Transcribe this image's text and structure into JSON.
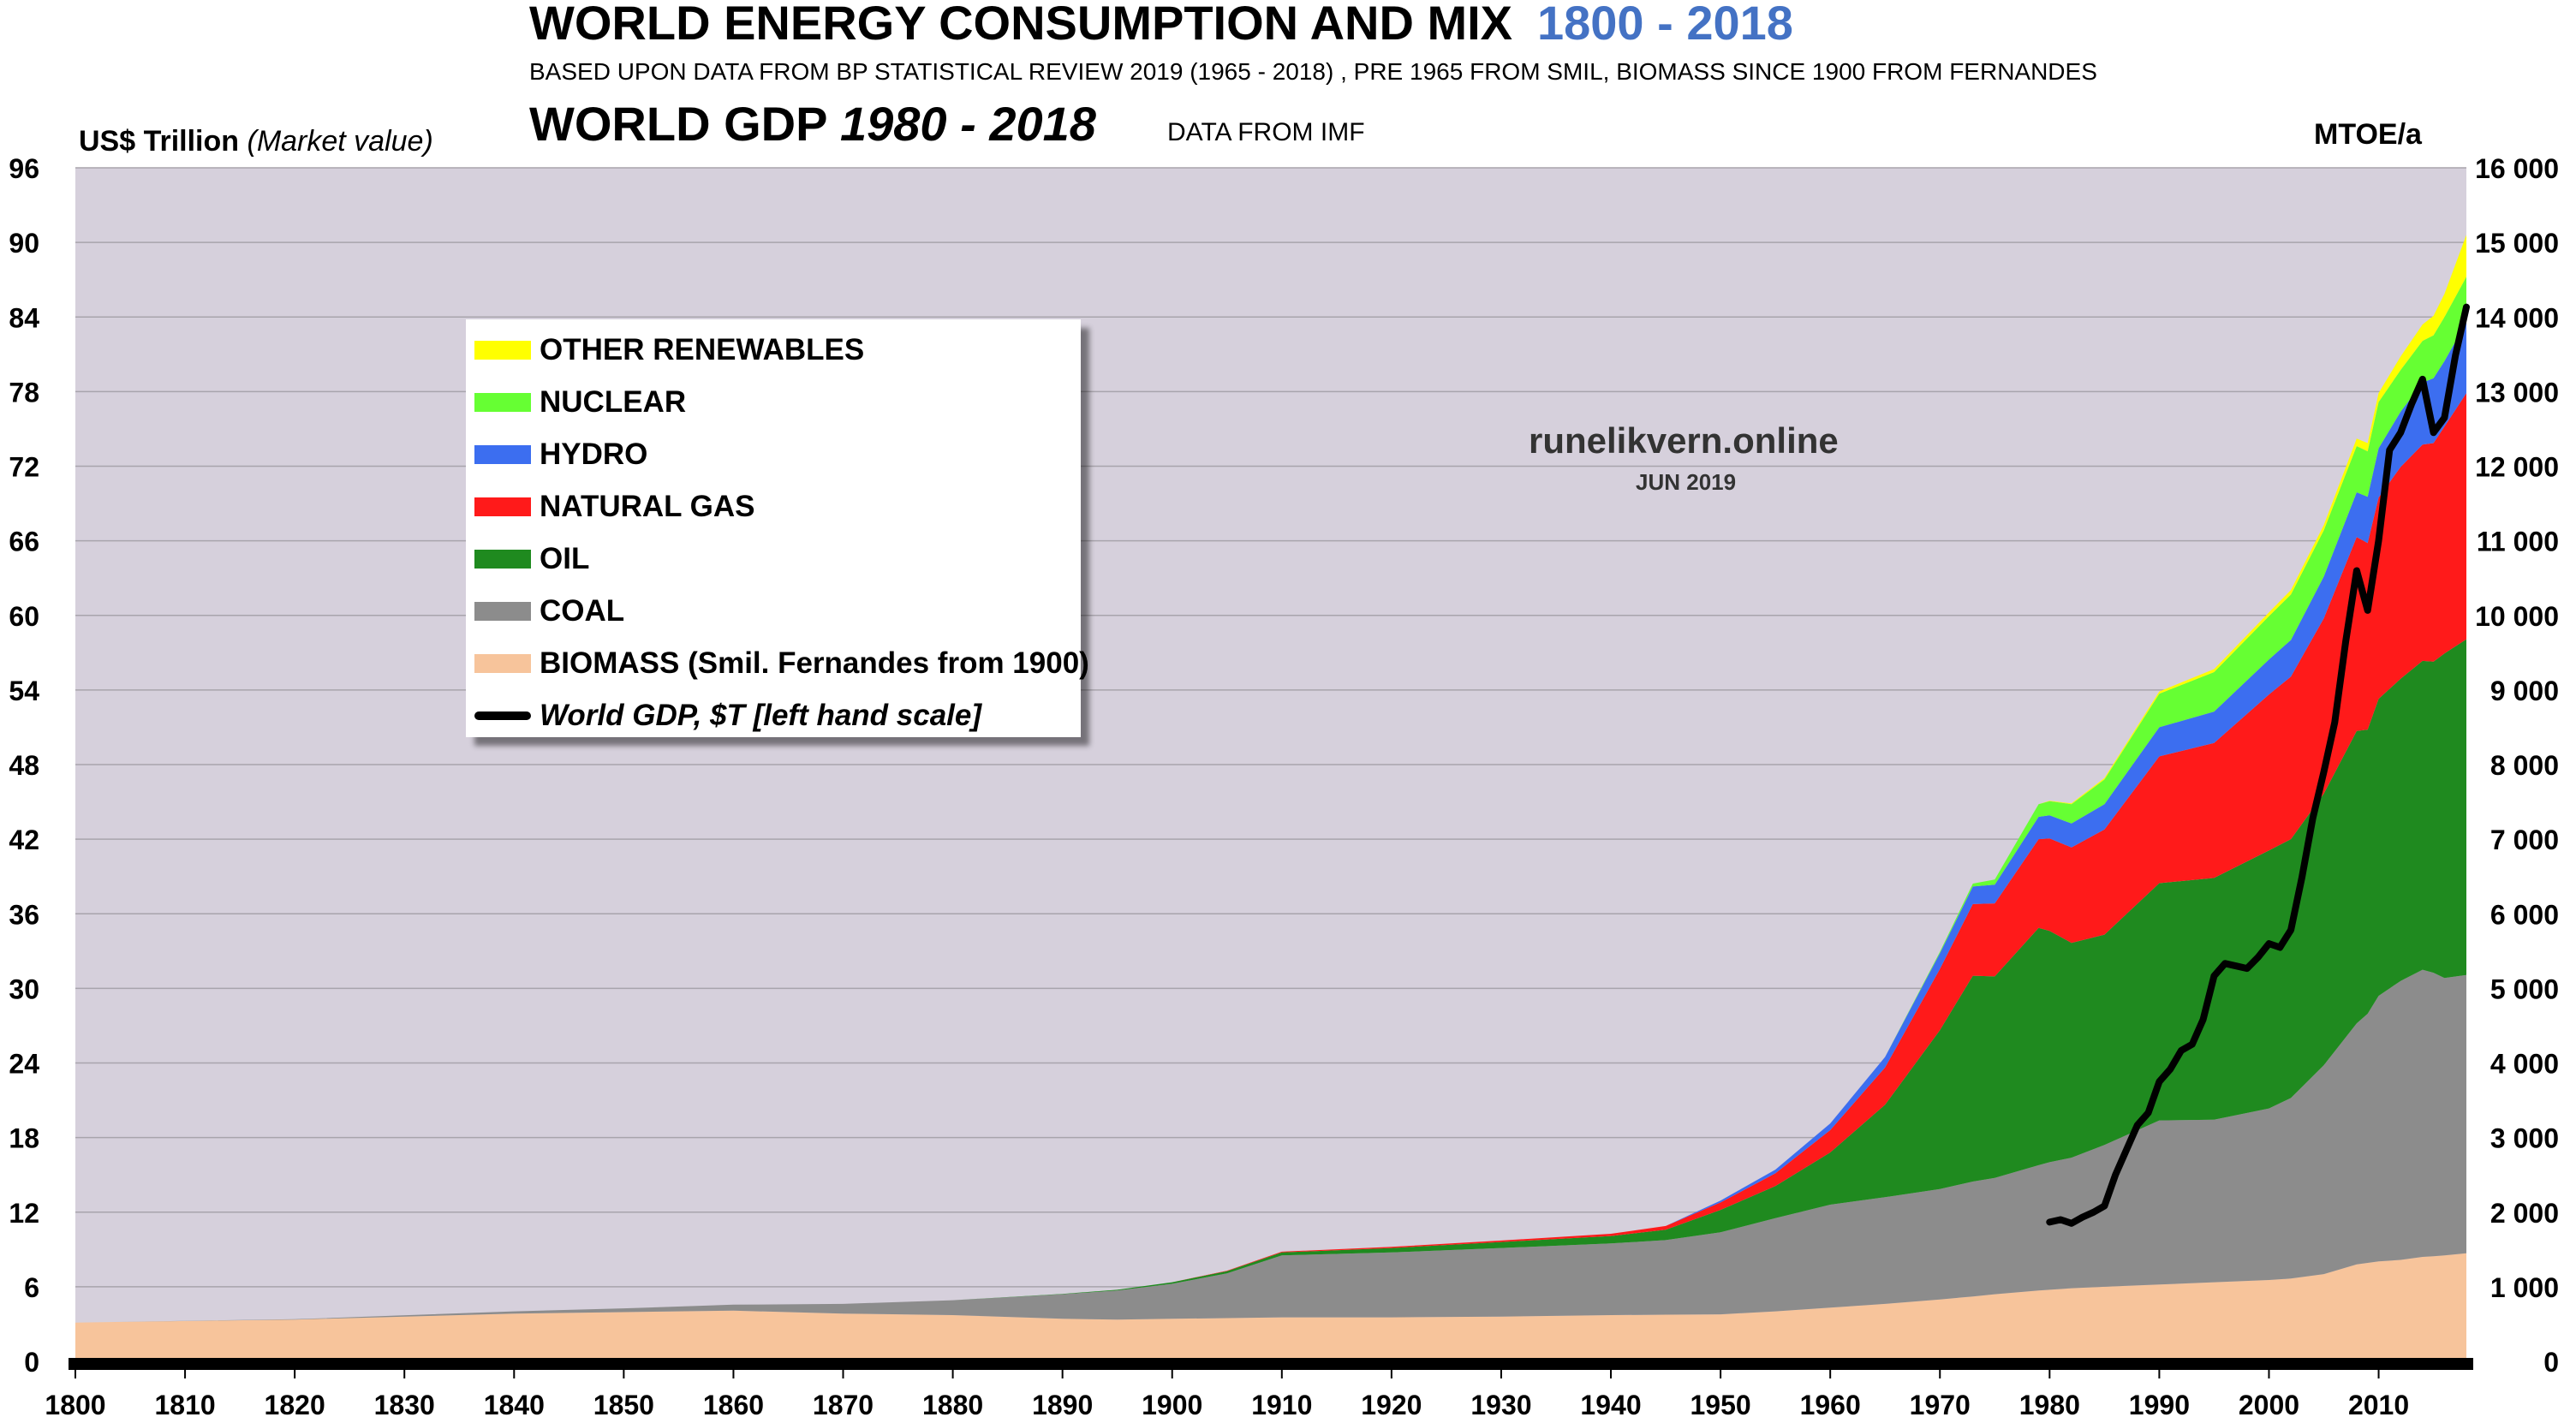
{
  "header": {
    "title": "WORLD ENERGY CONSUMPTION AND MIX",
    "years": "1800 - 2018",
    "subtitle": "BASED UPON DATA FROM BP STATISTICAL REVIEW 2019 (1965 - 2018) , PRE 1965 FROM SMIL,  BIOMASS SINCE 1900 FROM FERNANDES",
    "gdp_title": "WORLD GDP",
    "gdp_years": "1980 - 2018",
    "gdp_source": "DATA FROM  IMF"
  },
  "axes": {
    "left_unit": "US$ Trillion",
    "left_unit_note": "(Market value)",
    "right_unit": "MTOE/a"
  },
  "watermark": {
    "site": "runelikvern.online",
    "date": "JUN 2019"
  },
  "legend": [
    {
      "label": "OTHER RENEWABLES",
      "color": "#ffff00"
    },
    {
      "label": "NUCLEAR",
      "color": "#66ff33"
    },
    {
      "label": "HYDRO",
      "color": "#3c6ef0"
    },
    {
      "label": "NATURAL GAS",
      "color": "#ff1a1a"
    },
    {
      "label": "OIL",
      "color": "#1f8a1f"
    },
    {
      "label": "COAL",
      "color": "#8c8c8c"
    },
    {
      "label": "BIOMASS (Smil. Fernandes from 1900)",
      "color": "#f7c49b"
    },
    {
      "label": "World GDP, $T [left hand scale]",
      "color": "#000000",
      "line": true
    }
  ],
  "chart_data": {
    "type": "area",
    "title": "WORLD ENERGY CONSUMPTION AND MIX",
    "xlim": [
      1800,
      2018
    ],
    "x_ticks": [
      "1800",
      "1810",
      "1820",
      "1830",
      "1840",
      "1850",
      "1860",
      "1870",
      "1880",
      "1890",
      "1900",
      "1910",
      "1920",
      "1930",
      "1940",
      "1950",
      "1960",
      "1970",
      "1980",
      "1990",
      "2000",
      "2010"
    ],
    "y_left": {
      "label": "US$ Trillion (Market value)",
      "ylim": [
        0,
        96
      ],
      "ticks": [
        "0",
        "6",
        "12",
        "18",
        "24",
        "30",
        "36",
        "42",
        "48",
        "54",
        "60",
        "66",
        "72",
        "78",
        "84",
        "90",
        "96"
      ]
    },
    "y_right": {
      "label": "MTOE/a",
      "ylim": [
        0,
        16000
      ],
      "ticks": [
        "0",
        "1 000",
        "2 000",
        "3 000",
        "4 000",
        "5 000",
        "6 000",
        "7 000",
        "8 000",
        "9 000",
        "10 000",
        "11 000",
        "12 000",
        "13 000",
        "14 000",
        "15 000",
        "16 000"
      ]
    },
    "x": [
      1800,
      1820,
      1840,
      1850,
      1860,
      1870,
      1880,
      1890,
      1895,
      1900,
      1905,
      1910,
      1920,
      1930,
      1940,
      1945,
      1950,
      1955,
      1960,
      1965,
      1970,
      1973,
      1975,
      1979,
      1980,
      1982,
      1985,
      1990,
      1995,
      2000,
      2002,
      2005,
      2008,
      2009,
      2010,
      2012,
      2014,
      2015,
      2016,
      2018
    ],
    "series": [
      {
        "name": "BIOMASS",
        "color": "#f7c49b",
        "values": [
          520,
          560,
          640,
          660,
          680,
          640,
          620,
          570,
          560,
          570,
          580,
          590,
          590,
          600,
          620,
          625,
          630,
          670,
          720,
          770,
          830,
          870,
          900,
          950,
          960,
          980,
          1000,
          1030,
          1060,
          1090,
          1110,
          1170,
          1300,
          1320,
          1340,
          1360,
          1400,
          1410,
          1420,
          1450
        ]
      },
      {
        "name": "COAL",
        "color": "#8c8c8c",
        "values": [
          0,
          5,
          30,
          50,
          80,
          130,
          200,
          330,
          390,
          470,
          600,
          830,
          870,
          920,
          960,
          1000,
          1100,
          1250,
          1380,
          1430,
          1480,
          1540,
          1560,
          1680,
          1710,
          1750,
          1900,
          2200,
          2180,
          2300,
          2420,
          2800,
          3230,
          3340,
          3560,
          3740,
          3850,
          3800,
          3720,
          3730
        ]
      },
      {
        "name": "OIL",
        "color": "#1f8a1f",
        "values": [
          0,
          0,
          0,
          0,
          0,
          0,
          0,
          5,
          10,
          20,
          30,
          40,
          60,
          80,
          100,
          140,
          300,
          430,
          700,
          1240,
          2130,
          2760,
          2700,
          3180,
          3100,
          2880,
          2820,
          3180,
          3240,
          3460,
          3470,
          3640,
          3920,
          3810,
          3980,
          4050,
          4140,
          4170,
          4350,
          4500
        ]
      },
      {
        "name": "NATURAL GAS",
        "color": "#ff1a1a",
        "values": [
          0,
          0,
          0,
          0,
          0,
          0,
          0,
          0,
          0,
          0,
          5,
          10,
          15,
          20,
          30,
          50,
          100,
          170,
          300,
          500,
          820,
          960,
          980,
          1190,
          1240,
          1280,
          1410,
          1700,
          1810,
          2090,
          2180,
          2350,
          2600,
          2500,
          2700,
          2840,
          2900,
          2930,
          3040,
          3300
        ]
      },
      {
        "name": "HYDRO",
        "color": "#3c6ef0",
        "values": [
          0,
          0,
          0,
          0,
          0,
          0,
          0,
          0,
          0,
          0,
          0,
          0,
          0,
          0,
          0,
          0,
          25,
          50,
          90,
          140,
          210,
          235,
          250,
          300,
          310,
          320,
          340,
          390,
          420,
          470,
          490,
          560,
          600,
          620,
          660,
          740,
          830,
          870,
          880,
          950
        ]
      },
      {
        "name": "NUCLEAR",
        "color": "#66ff33",
        "values": [
          0,
          0,
          0,
          0,
          0,
          0,
          0,
          0,
          0,
          0,
          0,
          0,
          0,
          0,
          0,
          0,
          0,
          0,
          0,
          0,
          20,
          40,
          70,
          170,
          190,
          260,
          330,
          450,
          530,
          580,
          610,
          620,
          620,
          610,
          620,
          560,
          560,
          575,
          590,
          610
        ]
      },
      {
        "name": "OTHER RENEWABLES",
        "color": "#ffff00",
        "values": [
          0,
          0,
          0,
          0,
          0,
          0,
          0,
          0,
          0,
          0,
          0,
          0,
          0,
          0,
          0,
          0,
          0,
          0,
          0,
          0,
          0,
          0,
          0,
          0,
          5,
          10,
          20,
          30,
          40,
          50,
          60,
          70,
          100,
          110,
          120,
          180,
          220,
          260,
          310,
          560
        ]
      }
    ],
    "gdp": {
      "name": "World GDP, $T [left hand scale]",
      "axis": "left",
      "color": "#000000",
      "x": [
        1980,
        1981,
        1982,
        1983,
        1984,
        1985,
        1986,
        1987,
        1988,
        1989,
        1990,
        1991,
        1992,
        1993,
        1994,
        1995,
        1996,
        1997,
        1998,
        1999,
        2000,
        2001,
        2002,
        2003,
        2004,
        2005,
        2006,
        2007,
        2008,
        2009,
        2010,
        2011,
        2012,
        2013,
        2014,
        2015,
        2016,
        2017,
        2018
      ],
      "values": [
        11.2,
        11.4,
        11.1,
        11.6,
        12.0,
        12.5,
        15.0,
        17.0,
        19.0,
        20.0,
        22.5,
        23.5,
        25.0,
        25.5,
        27.5,
        31.0,
        32.0,
        31.8,
        31.6,
        32.5,
        33.6,
        33.3,
        34.7,
        38.9,
        43.7,
        47.4,
        51.4,
        57.9,
        63.6,
        60.4,
        66.0,
        73.3,
        74.7,
        77.0,
        79.0,
        74.7,
        75.9,
        80.9,
        84.8
      ]
    }
  }
}
